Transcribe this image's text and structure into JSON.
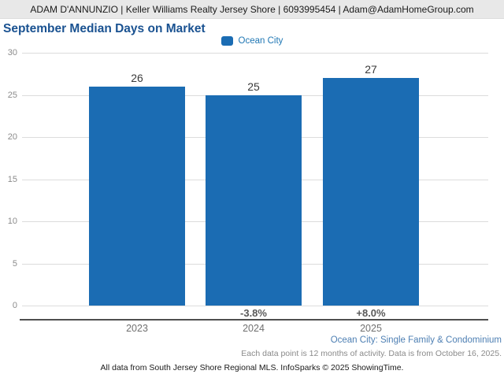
{
  "header": {
    "contact_line": "ADAM D'ANNUNZIO | Keller Williams Realty Jersey Shore | 6093995454 | Adam@AdamHomeGroup.com"
  },
  "title": "September Median Days on Market",
  "legend": {
    "label": "Ocean City",
    "color": "#1b6cb3"
  },
  "chart_data": {
    "type": "bar",
    "title": "September Median Days on Market",
    "categories": [
      "2023",
      "2024",
      "2025"
    ],
    "series": [
      {
        "name": "Ocean City",
        "values": [
          26,
          25,
          27
        ]
      }
    ],
    "value_labels": [
      "26",
      "25",
      "27"
    ],
    "pct_change_labels": [
      "",
      "-3.8%",
      "+8.0%"
    ],
    "yticks": [
      0,
      5,
      10,
      15,
      20,
      25,
      30
    ],
    "ylim": [
      0,
      30
    ],
    "grid": true,
    "legend_position": "top-center",
    "bar_color": "#1b6cb3"
  },
  "footer": {
    "scope_line": "Ocean City: Single Family & Condominium",
    "data_note": "Each data point is 12 months of activity. Data is from October 16, 2025.",
    "attribution": "All data from South Jersey Shore Regional MLS. InfoSparks © 2025 ShowingTime."
  },
  "colors": {
    "bar_blue": "#1b6cb3",
    "title_blue": "#1a5291",
    "legend_text_blue": "#1f77b4",
    "footer_scope_blue": "#4d7fb3",
    "header_bg_gray": "#e8e8e8",
    "gridline_gray": "#dcdcdc",
    "axis_gray": "#4f4f4f"
  }
}
